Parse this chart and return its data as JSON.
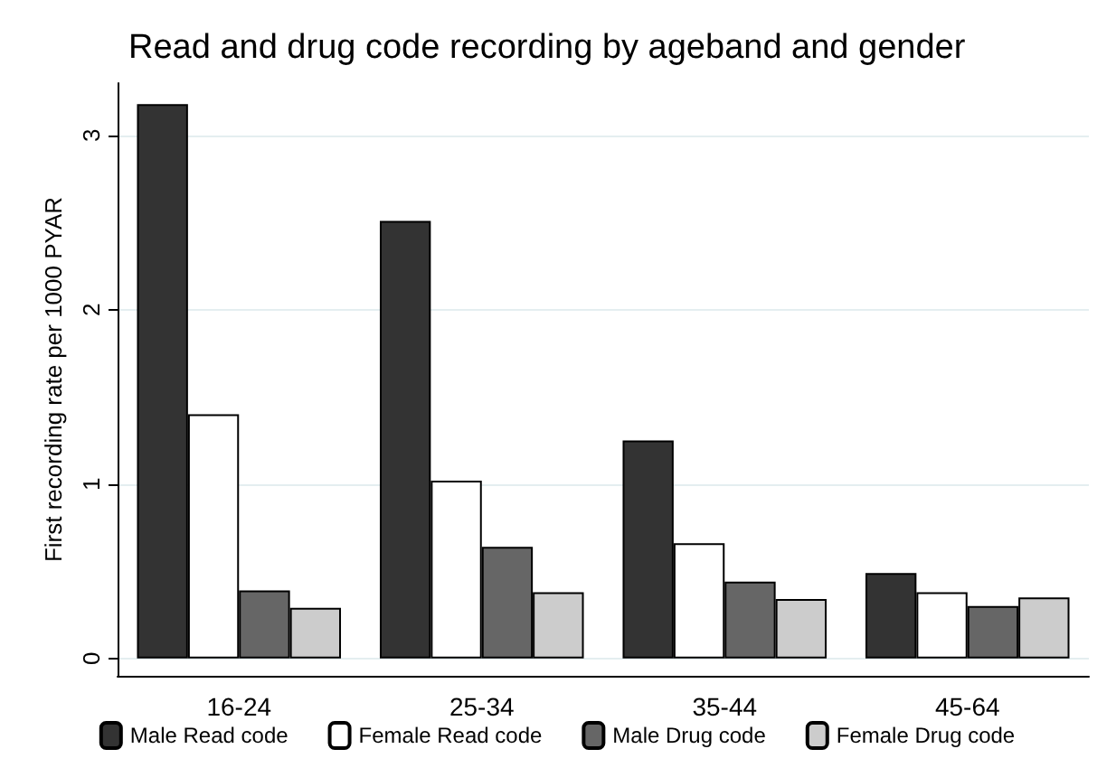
{
  "chart_data": {
    "type": "bar",
    "title": "Read and drug code recording by ageband and gender",
    "ylabel": "First recording rate per 1000 PYAR",
    "categories": [
      "16-24",
      "25-34",
      "35-44",
      "45-64"
    ],
    "series": [
      {
        "name": "Male Read code",
        "color": "#333333",
        "values": [
          3.18,
          2.51,
          1.25,
          0.49
        ]
      },
      {
        "name": "Female Read code",
        "color": "#ffffff",
        "values": [
          1.4,
          1.02,
          0.66,
          0.38
        ]
      },
      {
        "name": "Male Drug code",
        "color": "#666666",
        "values": [
          0.39,
          0.64,
          0.44,
          0.3
        ]
      },
      {
        "name": "Female Drug code",
        "color": "#cccccc",
        "values": [
          0.29,
          0.38,
          0.34,
          0.35
        ]
      }
    ],
    "ylim": [
      -0.1,
      3.3
    ],
    "yticks": [
      0,
      1,
      2,
      3
    ],
    "grid": "y",
    "legend": "bottom"
  }
}
